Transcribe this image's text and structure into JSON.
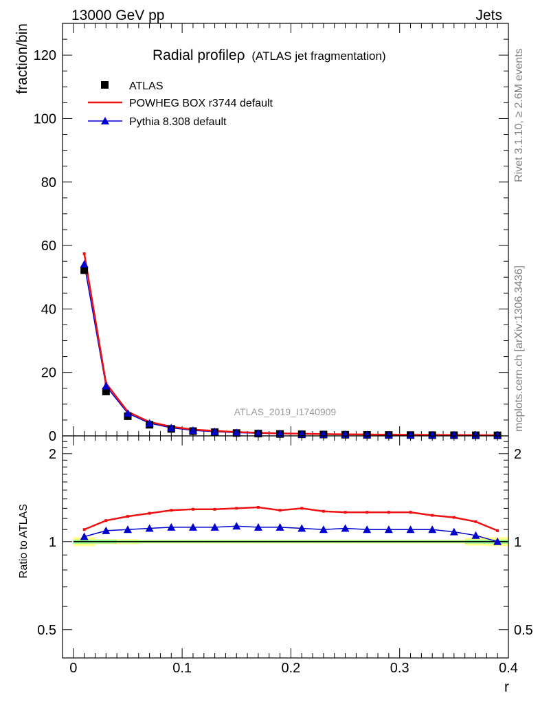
{
  "header": {
    "energy_label": "13000 GeV pp",
    "process_label": "Jets"
  },
  "side_labels": {
    "rivet": "Rivet 3.1.10, ≥ 2.6M events",
    "mcplots": "mcplots.cern.ch [arXiv:1306.3436]"
  },
  "chart_data": [
    {
      "type": "scatter",
      "title": "Radial profileρ",
      "subtitle": "(ATLAS jet fragmentation)",
      "analysis_label": "ATLAS_2019_I1740909",
      "xlabel": "",
      "ylabel": "fraction/bin",
      "xlim": [
        -0.01,
        0.4
      ],
      "ylim": [
        0,
        130
      ],
      "yticks": [
        0,
        20,
        40,
        60,
        80,
        100,
        120
      ],
      "x": [
        0.01,
        0.03,
        0.05,
        0.07,
        0.09,
        0.11,
        0.13,
        0.15,
        0.17,
        0.19,
        0.21,
        0.23,
        0.25,
        0.27,
        0.29,
        0.31,
        0.33,
        0.35,
        0.37,
        0.39
      ],
      "series": [
        {
          "name": "ATLAS",
          "color": "#000000",
          "marker": "square",
          "values": [
            52.2,
            14.0,
            6.2,
            3.5,
            2.2,
            1.5,
            1.15,
            0.9,
            0.72,
            0.6,
            0.5,
            0.43,
            0.37,
            0.33,
            0.29,
            0.26,
            0.23,
            0.21,
            0.19,
            0.17
          ]
        },
        {
          "name": "POWHEG BOX r3744 default",
          "color": "#ee1111",
          "marker": "line",
          "values": [
            57.4,
            16.6,
            7.6,
            4.4,
            2.9,
            2.0,
            1.55,
            1.21,
            0.98,
            0.79,
            0.67,
            0.56,
            0.49,
            0.43,
            0.38,
            0.34,
            0.3,
            0.27,
            0.23,
            0.19
          ]
        },
        {
          "name": "Pythia 8.308 default",
          "color": "#0000cc",
          "marker": "triangle",
          "values": [
            54.1,
            15.7,
            7.1,
            4.0,
            2.55,
            1.73,
            1.33,
            1.04,
            0.82,
            0.69,
            0.57,
            0.49,
            0.42,
            0.375,
            0.33,
            0.295,
            0.26,
            0.231,
            0.2,
            0.17
          ]
        }
      ],
      "legend": "top-left"
    },
    {
      "type": "line",
      "title": "",
      "xlabel": "r",
      "ylabel": "Ratio to ATLAS",
      "xlim": [
        -0.01,
        0.4
      ],
      "ylim": [
        0.4,
        2.3
      ],
      "yticks": [
        0.5,
        1,
        2
      ],
      "xticks": [
        0,
        0.1,
        0.2,
        0.3,
        0.4
      ],
      "x": [
        0.01,
        0.03,
        0.05,
        0.07,
        0.09,
        0.11,
        0.13,
        0.15,
        0.17,
        0.19,
        0.21,
        0.23,
        0.25,
        0.27,
        0.29,
        0.31,
        0.33,
        0.35,
        0.37,
        0.39
      ],
      "band_edges": [
        0,
        0.02,
        0.04,
        0.06,
        0.08,
        0.1,
        0.12,
        0.14,
        0.16,
        0.18,
        0.2,
        0.22,
        0.24,
        0.26,
        0.28,
        0.3,
        0.32,
        0.34,
        0.36,
        0.38,
        0.4
      ],
      "uncertainty_inner": [
        0.015,
        0.015,
        0.01,
        0.01,
        0.01,
        0.01,
        0.01,
        0.01,
        0.01,
        0.01,
        0.01,
        0.01,
        0.01,
        0.01,
        0.01,
        0.01,
        0.01,
        0.01,
        0.015,
        0.015
      ],
      "uncertainty_outer": [
        0.035,
        0.02,
        0.02,
        0.015,
        0.015,
        0.015,
        0.015,
        0.015,
        0.015,
        0.015,
        0.015,
        0.015,
        0.015,
        0.015,
        0.015,
        0.015,
        0.015,
        0.015,
        0.03,
        0.035
      ],
      "series": [
        {
          "name": "POWHEG BOX r3744 default",
          "color": "#ee1111",
          "values": [
            1.1,
            1.18,
            1.22,
            1.25,
            1.28,
            1.29,
            1.29,
            1.3,
            1.31,
            1.28,
            1.3,
            1.27,
            1.26,
            1.26,
            1.26,
            1.26,
            1.23,
            1.21,
            1.17,
            1.09
          ]
        },
        {
          "name": "Pythia 8.308 default",
          "color": "#0000cc",
          "values": [
            1.04,
            1.09,
            1.1,
            1.11,
            1.12,
            1.12,
            1.12,
            1.13,
            1.12,
            1.12,
            1.11,
            1.1,
            1.11,
            1.1,
            1.1,
            1.1,
            1.1,
            1.08,
            1.05,
            1.0
          ]
        }
      ]
    }
  ]
}
